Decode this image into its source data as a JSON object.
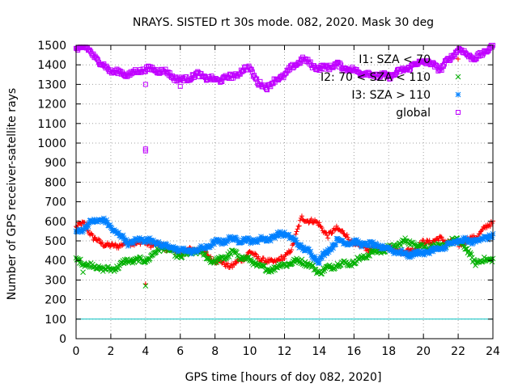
{
  "chart_data": {
    "type": "scatter",
    "title": "NRAYS. SISTED rt 30s mode. 082, 2020. Mask 30 deg",
    "xlabel": "GPS time [hours of doy 082, 2020]",
    "ylabel": "Number of GPS receiver-satellite rays",
    "xlim": [
      0,
      24
    ],
    "ylim": [
      0,
      1500
    ],
    "xticks": [
      "0",
      "2",
      "4",
      "6",
      "8",
      "10",
      "12",
      "14",
      "16",
      "18",
      "20",
      "22",
      "24"
    ],
    "yticks": [
      "0",
      "100",
      "200",
      "300",
      "400",
      "500",
      "600",
      "700",
      "800",
      "900",
      "1000",
      "1100",
      "1200",
      "1300",
      "1400",
      "1500"
    ],
    "grid": true,
    "legend_position": "top-right",
    "reference_line": {
      "y": 100,
      "color": "#00c0c0"
    },
    "series": [
      {
        "name": "I1: SZA < 70",
        "marker": "plus",
        "color": "#ff0000",
        "knots": [
          [
            0,
            570
          ],
          [
            0.5,
            590
          ],
          [
            1,
            510
          ],
          [
            2,
            470
          ],
          [
            3,
            490
          ],
          [
            4,
            490
          ],
          [
            5,
            470
          ],
          [
            6,
            440
          ],
          [
            7,
            460
          ],
          [
            8,
            400
          ],
          [
            9,
            370
          ],
          [
            10,
            440
          ],
          [
            11,
            390
          ],
          [
            12,
            410
          ],
          [
            12.5,
            480
          ],
          [
            13,
            620
          ],
          [
            13.5,
            600
          ],
          [
            14,
            590
          ],
          [
            14.5,
            520
          ],
          [
            15,
            570
          ],
          [
            15.5,
            530
          ],
          [
            16,
            480
          ],
          [
            17,
            460
          ],
          [
            18,
            470
          ],
          [
            19,
            440
          ],
          [
            20,
            490
          ],
          [
            21,
            510
          ],
          [
            22,
            480
          ],
          [
            23,
            520
          ],
          [
            24,
            600
          ]
        ],
        "outliers": [
          [
            4,
            280
          ]
        ]
      },
      {
        "name": "I2: 70 < SZA < 110",
        "marker": "cross",
        "color": "#00b000",
        "knots": [
          [
            0,
            400
          ],
          [
            1,
            370
          ],
          [
            2,
            350
          ],
          [
            3,
            400
          ],
          [
            4,
            400
          ],
          [
            5,
            470
          ],
          [
            6,
            420
          ],
          [
            7,
            450
          ],
          [
            8,
            390
          ],
          [
            9,
            440
          ],
          [
            10,
            400
          ],
          [
            11,
            350
          ],
          [
            12,
            380
          ],
          [
            13,
            400
          ],
          [
            14,
            340
          ],
          [
            15,
            380
          ],
          [
            16,
            390
          ],
          [
            17,
            440
          ],
          [
            18,
            460
          ],
          [
            19,
            500
          ],
          [
            20,
            470
          ],
          [
            21,
            470
          ],
          [
            22,
            510
          ],
          [
            23,
            390
          ],
          [
            24,
            410
          ]
        ],
        "outliers": [
          [
            0.4,
            340
          ],
          [
            4,
            270
          ]
        ]
      },
      {
        "name": "I3: SZA > 110",
        "marker": "asterisk",
        "color": "#0080ff",
        "knots": [
          [
            0,
            540
          ],
          [
            0.5,
            570
          ],
          [
            1,
            600
          ],
          [
            1.5,
            610
          ],
          [
            2,
            570
          ],
          [
            3,
            490
          ],
          [
            4,
            510
          ],
          [
            5,
            480
          ],
          [
            6,
            450
          ],
          [
            7,
            450
          ],
          [
            8,
            490
          ],
          [
            9,
            510
          ],
          [
            10,
            500
          ],
          [
            11,
            510
          ],
          [
            12,
            540
          ],
          [
            13,
            470
          ],
          [
            14,
            400
          ],
          [
            15,
            500
          ],
          [
            16,
            490
          ],
          [
            17,
            480
          ],
          [
            18,
            460
          ],
          [
            19,
            430
          ],
          [
            20,
            440
          ],
          [
            21,
            460
          ],
          [
            22,
            500
          ],
          [
            23,
            500
          ],
          [
            24,
            530
          ]
        ],
        "outliers": [
          [
            4,
            500
          ]
        ]
      },
      {
        "name": "global",
        "marker": "square",
        "color": "#c000ff",
        "knots": [
          [
            0,
            1480
          ],
          [
            0.5,
            1490
          ],
          [
            1,
            1450
          ],
          [
            1.5,
            1400
          ],
          [
            2,
            1370
          ],
          [
            3,
            1350
          ],
          [
            4,
            1380
          ],
          [
            5,
            1370
          ],
          [
            6,
            1320
          ],
          [
            7,
            1350
          ],
          [
            8,
            1320
          ],
          [
            9,
            1340
          ],
          [
            10,
            1390
          ],
          [
            10.5,
            1300
          ],
          [
            11,
            1290
          ],
          [
            12,
            1350
          ],
          [
            13,
            1430
          ],
          [
            14,
            1380
          ],
          [
            15,
            1400
          ],
          [
            16,
            1370
          ],
          [
            17,
            1350
          ],
          [
            18,
            1340
          ],
          [
            19,
            1380
          ],
          [
            20,
            1420
          ],
          [
            21,
            1380
          ],
          [
            22,
            1480
          ],
          [
            23,
            1430
          ],
          [
            24,
            1500
          ]
        ],
        "outliers": [
          [
            4,
            960
          ],
          [
            4,
            970
          ],
          [
            4,
            1300
          ],
          [
            6,
            1290
          ]
        ]
      }
    ]
  }
}
